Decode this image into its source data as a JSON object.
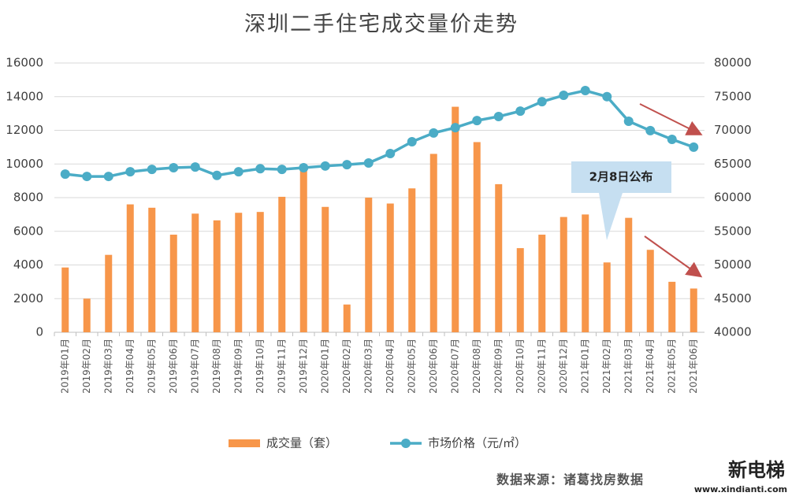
{
  "chart_data": {
    "type": "bar-line",
    "title": "深圳二手住宅成交量价走势",
    "categories": [
      "2019年01月",
      "2019年02月",
      "2019年03月",
      "2019年04月",
      "2019年05月",
      "2019年06月",
      "2019年07月",
      "2019年08月",
      "2019年09月",
      "2019年10月",
      "2019年11月",
      "2019年12月",
      "2020年01月",
      "2020年02月",
      "2020年03月",
      "2020年04月",
      "2020年05月",
      "2020年06月",
      "2020年07月",
      "2020年08月",
      "2020年09月",
      "2020年10月",
      "2020年11月",
      "2020年12月",
      "2021年01月",
      "2021年02月",
      "2021年03月",
      "2021年04月",
      "2021年05月",
      "2021年06月"
    ],
    "series": [
      {
        "name": "成交量（套）",
        "type": "bar",
        "color": "#f7964a",
        "values": [
          3850,
          2000,
          4600,
          7600,
          7400,
          5800,
          7050,
          6650,
          7100,
          7150,
          8050,
          9750,
          7450,
          1650,
          8000,
          7650,
          8550,
          10600,
          13400,
          11300,
          8800,
          5000,
          5800,
          6850,
          7000,
          4150,
          6800,
          4900,
          3000,
          2600
        ]
      },
      {
        "name": "市场价格（元/㎡）",
        "type": "line",
        "axis": "y2",
        "color": "#4bacc6",
        "values": [
          63500,
          63150,
          63150,
          63850,
          64200,
          64450,
          64550,
          63300,
          63850,
          64300,
          64200,
          64450,
          64700,
          64900,
          65150,
          66550,
          68300,
          69600,
          70400,
          71450,
          72050,
          72850,
          74250,
          75200,
          75900,
          75000,
          71350,
          69950,
          68650,
          67500
        ]
      }
    ],
    "ylim": [
      0,
      16000
    ],
    "yticks": [
      0,
      2000,
      4000,
      6000,
      8000,
      10000,
      12000,
      14000,
      16000
    ],
    "y2lim": [
      40000,
      80000
    ],
    "y2ticks": [
      40000,
      45000,
      50000,
      55000,
      60000,
      65000,
      70000,
      75000,
      80000
    ],
    "grid": true,
    "annotation": "2月8日公布",
    "source": "数据来源：诸葛找房数据",
    "watermark": {
      "logo": "新电梯",
      "url": "www.xindianti.com"
    }
  }
}
